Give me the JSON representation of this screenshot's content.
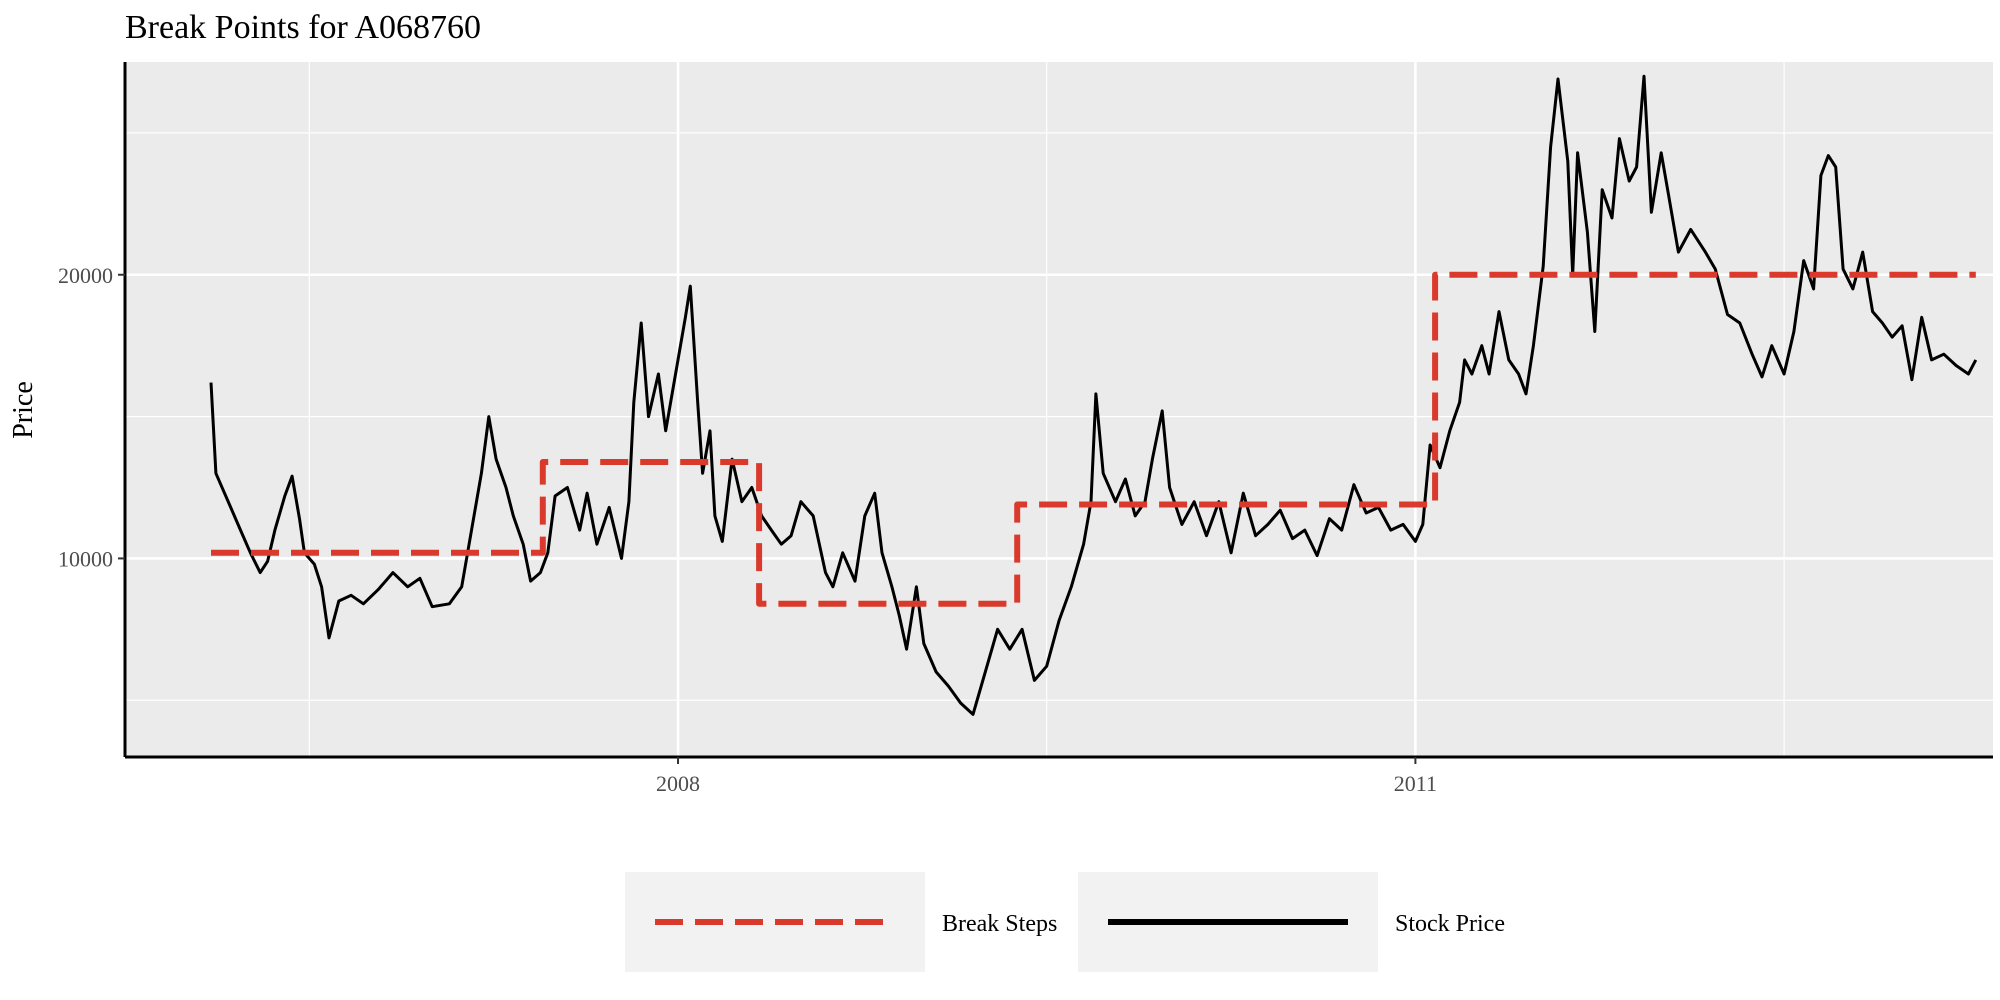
{
  "chart_data": {
    "type": "line",
    "title": "Break Points for A068760",
    "xlabel": "",
    "ylabel": "Price",
    "x_range": [
      2005.75,
      2013.35
    ],
    "ylim": [
      3000,
      27500
    ],
    "x_ticks": [
      {
        "value": 2008,
        "label": "2008"
      },
      {
        "value": 2011,
        "label": "2011"
      }
    ],
    "x_minor_ticks": [
      2006.5,
      2009.5,
      2012.5
    ],
    "y_ticks": [
      {
        "value": 10000,
        "label": "10000"
      },
      {
        "value": 20000,
        "label": "20000"
      }
    ],
    "y_minor_ticks": [
      5000,
      15000,
      25000
    ],
    "grid": true,
    "legend_position": "bottom",
    "series": [
      {
        "name": "Stock Price",
        "color": "#000000",
        "style": "solid",
        "points": [
          [
            2006.1,
            16200
          ],
          [
            2006.12,
            13000
          ],
          [
            2006.18,
            11800
          ],
          [
            2006.22,
            11000
          ],
          [
            2006.26,
            10200
          ],
          [
            2006.3,
            9500
          ],
          [
            2006.33,
            9900
          ],
          [
            2006.36,
            11000
          ],
          [
            2006.4,
            12200
          ],
          [
            2006.43,
            12900
          ],
          [
            2006.46,
            11400
          ],
          [
            2006.48,
            10200
          ],
          [
            2006.52,
            9800
          ],
          [
            2006.55,
            9000
          ],
          [
            2006.58,
            7200
          ],
          [
            2006.62,
            8500
          ],
          [
            2006.67,
            8700
          ],
          [
            2006.72,
            8400
          ],
          [
            2006.78,
            8900
          ],
          [
            2006.84,
            9500
          ],
          [
            2006.9,
            9000
          ],
          [
            2006.95,
            9300
          ],
          [
            2007.0,
            8300
          ],
          [
            2007.07,
            8400
          ],
          [
            2007.12,
            9000
          ],
          [
            2007.17,
            11500
          ],
          [
            2007.2,
            13000
          ],
          [
            2007.23,
            15000
          ],
          [
            2007.26,
            13500
          ],
          [
            2007.3,
            12500
          ],
          [
            2007.33,
            11500
          ],
          [
            2007.37,
            10500
          ],
          [
            2007.4,
            9200
          ],
          [
            2007.44,
            9500
          ],
          [
            2007.47,
            10200
          ],
          [
            2007.5,
            12200
          ],
          [
            2007.55,
            12500
          ],
          [
            2007.6,
            11000
          ],
          [
            2007.63,
            12300
          ],
          [
            2007.67,
            10500
          ],
          [
            2007.72,
            11800
          ],
          [
            2007.77,
            10000
          ],
          [
            2007.8,
            12000
          ],
          [
            2007.82,
            15500
          ],
          [
            2007.85,
            18300
          ],
          [
            2007.88,
            15000
          ],
          [
            2007.92,
            16500
          ],
          [
            2007.95,
            14500
          ],
          [
            2008.0,
            17000
          ],
          [
            2008.03,
            18500
          ],
          [
            2008.05,
            19600
          ],
          [
            2008.08,
            15500
          ],
          [
            2008.1,
            13000
          ],
          [
            2008.13,
            14500
          ],
          [
            2008.15,
            11500
          ],
          [
            2008.18,
            10600
          ],
          [
            2008.22,
            13500
          ],
          [
            2008.26,
            12000
          ],
          [
            2008.3,
            12500
          ],
          [
            2008.34,
            11500
          ],
          [
            2008.38,
            11000
          ],
          [
            2008.42,
            10500
          ],
          [
            2008.46,
            10800
          ],
          [
            2008.5,
            12000
          ],
          [
            2008.55,
            11500
          ],
          [
            2008.6,
            9500
          ],
          [
            2008.63,
            9000
          ],
          [
            2008.67,
            10200
          ],
          [
            2008.72,
            9200
          ],
          [
            2008.76,
            11500
          ],
          [
            2008.8,
            12300
          ],
          [
            2008.83,
            10200
          ],
          [
            2008.87,
            9000
          ],
          [
            2008.9,
            8000
          ],
          [
            2008.93,
            6800
          ],
          [
            2008.97,
            9000
          ],
          [
            2009.0,
            7000
          ],
          [
            2009.05,
            6000
          ],
          [
            2009.1,
            5500
          ],
          [
            2009.15,
            4900
          ],
          [
            2009.2,
            4500
          ],
          [
            2009.25,
            6000
          ],
          [
            2009.3,
            7500
          ],
          [
            2009.35,
            6800
          ],
          [
            2009.4,
            7500
          ],
          [
            2009.45,
            5700
          ],
          [
            2009.5,
            6200
          ],
          [
            2009.55,
            7800
          ],
          [
            2009.6,
            9000
          ],
          [
            2009.65,
            10500
          ],
          [
            2009.68,
            12000
          ],
          [
            2009.7,
            15800
          ],
          [
            2009.73,
            13000
          ],
          [
            2009.78,
            12000
          ],
          [
            2009.82,
            12800
          ],
          [
            2009.86,
            11500
          ],
          [
            2009.9,
            12000
          ],
          [
            2009.93,
            13500
          ],
          [
            2009.97,
            15200
          ],
          [
            2010.0,
            12500
          ],
          [
            2010.05,
            11200
          ],
          [
            2010.1,
            12000
          ],
          [
            2010.15,
            10800
          ],
          [
            2010.2,
            12000
          ],
          [
            2010.25,
            10200
          ],
          [
            2010.3,
            12300
          ],
          [
            2010.35,
            10800
          ],
          [
            2010.4,
            11200
          ],
          [
            2010.45,
            11700
          ],
          [
            2010.5,
            10700
          ],
          [
            2010.55,
            11000
          ],
          [
            2010.6,
            10100
          ],
          [
            2010.65,
            11400
          ],
          [
            2010.7,
            11000
          ],
          [
            2010.75,
            12600
          ],
          [
            2010.8,
            11600
          ],
          [
            2010.85,
            11800
          ],
          [
            2010.9,
            11000
          ],
          [
            2010.95,
            11200
          ],
          [
            2011.0,
            10600
          ],
          [
            2011.03,
            11200
          ],
          [
            2011.06,
            14000
          ],
          [
            2011.1,
            13200
          ],
          [
            2011.14,
            14500
          ],
          [
            2011.18,
            15500
          ],
          [
            2011.2,
            17000
          ],
          [
            2011.23,
            16500
          ],
          [
            2011.27,
            17500
          ],
          [
            2011.3,
            16500
          ],
          [
            2011.34,
            18700
          ],
          [
            2011.38,
            17000
          ],
          [
            2011.42,
            16500
          ],
          [
            2011.45,
            15800
          ],
          [
            2011.48,
            17500
          ],
          [
            2011.52,
            20300
          ],
          [
            2011.55,
            24500
          ],
          [
            2011.58,
            26900
          ],
          [
            2011.62,
            24000
          ],
          [
            2011.64,
            20000
          ],
          [
            2011.66,
            24300
          ],
          [
            2011.7,
            21500
          ],
          [
            2011.73,
            18000
          ],
          [
            2011.76,
            23000
          ],
          [
            2011.8,
            22000
          ],
          [
            2011.83,
            24800
          ],
          [
            2011.87,
            23300
          ],
          [
            2011.9,
            23800
          ],
          [
            2011.93,
            27000
          ],
          [
            2011.96,
            22200
          ],
          [
            2012.0,
            24300
          ],
          [
            2012.03,
            22800
          ],
          [
            2012.07,
            20800
          ],
          [
            2012.12,
            21600
          ],
          [
            2012.18,
            20800
          ],
          [
            2012.22,
            20200
          ],
          [
            2012.27,
            18600
          ],
          [
            2012.32,
            18300
          ],
          [
            2012.37,
            17200
          ],
          [
            2012.41,
            16400
          ],
          [
            2012.45,
            17500
          ],
          [
            2012.5,
            16500
          ],
          [
            2012.54,
            18000
          ],
          [
            2012.58,
            20500
          ],
          [
            2012.62,
            19500
          ],
          [
            2012.65,
            23500
          ],
          [
            2012.68,
            24200
          ],
          [
            2012.71,
            23800
          ],
          [
            2012.74,
            20200
          ],
          [
            2012.78,
            19500
          ],
          [
            2012.82,
            20800
          ],
          [
            2012.86,
            18700
          ],
          [
            2012.9,
            18300
          ],
          [
            2012.94,
            17800
          ],
          [
            2012.98,
            18200
          ],
          [
            2013.02,
            16300
          ],
          [
            2013.06,
            18500
          ],
          [
            2013.1,
            17000
          ],
          [
            2013.15,
            17200
          ],
          [
            2013.2,
            16800
          ],
          [
            2013.25,
            16500
          ],
          [
            2013.28,
            17000
          ]
        ]
      },
      {
        "name": "Break Steps",
        "color": "#d93a2b",
        "style": "dashed",
        "points": [
          [
            2006.1,
            10200
          ],
          [
            2007.45,
            10200
          ],
          [
            2007.45,
            13400
          ],
          [
            2008.33,
            13400
          ],
          [
            2008.33,
            8400
          ],
          [
            2009.38,
            8400
          ],
          [
            2009.38,
            11900
          ],
          [
            2011.08,
            11900
          ],
          [
            2011.08,
            20000
          ],
          [
            2013.28,
            20000
          ]
        ]
      }
    ],
    "legend": [
      {
        "label": "Break Steps",
        "color": "#d93a2b",
        "style": "dashed"
      },
      {
        "label": "Stock Price",
        "color": "#000000",
        "style": "solid"
      }
    ]
  }
}
